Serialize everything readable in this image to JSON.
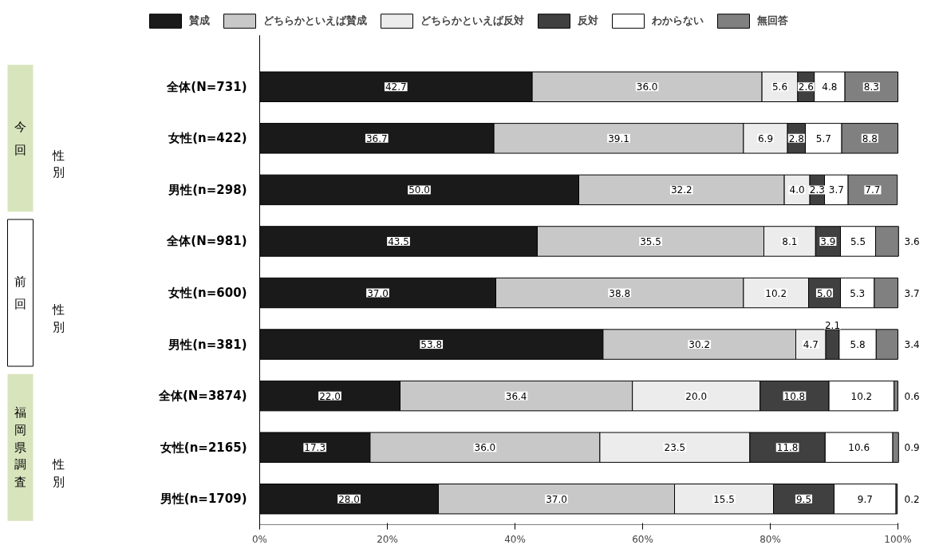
{
  "chart_data": {
    "type": "bar",
    "orientation": "horizontal",
    "stacked": true,
    "categories": [
      "全体(N=731)",
      "女性(n=422)",
      "男性(n=298)",
      "全体(N=981)",
      "女性(n=600)",
      "男性(n=381)",
      "全体(N=3874)",
      "女性(n=2165)",
      "男性(n=1709)"
    ],
    "series": [
      {
        "name": "賛成",
        "color": "#1a1a1a",
        "values": [
          42.7,
          36.7,
          50.0,
          43.5,
          37.0,
          53.8,
          22.0,
          17.3,
          28.0
        ],
        "value_labels": [
          "42.7",
          "36.7",
          "50.0",
          "43.5",
          "37.0",
          "53.8",
          "22.0",
          "17.3",
          "28.0"
        ]
      },
      {
        "name": "どちらかといえば賛成",
        "color": "#c8c8c8",
        "values": [
          36.0,
          39.1,
          32.2,
          35.5,
          38.8,
          30.2,
          36.4,
          36.0,
          37.0
        ],
        "value_labels": [
          "36.0",
          "39.1",
          "32.2",
          "35.5",
          "38.8",
          "30.2",
          "36.4",
          "36.0",
          "37.0"
        ]
      },
      {
        "name": "どちらかといえば反対",
        "color": "#ececec",
        "values": [
          5.6,
          6.9,
          4.0,
          8.1,
          10.2,
          4.7,
          20.0,
          23.5,
          15.5
        ],
        "value_labels": [
          "5.6",
          "6.9",
          "4.0",
          "8.1",
          "10.2",
          "4.7",
          "20.0",
          "23.5",
          "15.5"
        ]
      },
      {
        "name": "反対",
        "color": "#404040",
        "values": [
          2.6,
          2.8,
          2.3,
          3.9,
          5.0,
          2.1,
          10.8,
          11.8,
          9.5
        ],
        "value_labels": [
          "2.6",
          "2.8",
          "2.3",
          "3.9",
          "5.0",
          "2.1",
          "10.8",
          "11.8",
          "9.5"
        ]
      },
      {
        "name": "わからない",
        "color": "#ffffff",
        "values": [
          4.8,
          5.7,
          3.7,
          5.5,
          5.3,
          5.8,
          10.2,
          10.6,
          9.7
        ],
        "value_labels": [
          "4.8",
          "5.7",
          "3.7",
          "5.5",
          "5.3",
          "5.8",
          "10.2",
          "10.6",
          "9.7"
        ]
      },
      {
        "name": "無回答",
        "color": "#808080",
        "values": [
          8.3,
          8.8,
          7.7,
          3.6,
          3.7,
          3.4,
          0.6,
          0.9,
          0.2
        ],
        "value_labels": [
          "8.3",
          "8.8",
          "7.7",
          "3.6",
          "3.7",
          "3.4",
          "0.6",
          "0.9",
          "0.2"
        ]
      }
    ],
    "xlim": [
      0,
      100
    ],
    "xticks": [
      {
        "value": 0,
        "label": "0%"
      },
      {
        "value": 20,
        "label": "20%"
      },
      {
        "value": 40,
        "label": "40%"
      },
      {
        "value": 60,
        "label": "60%"
      },
      {
        "value": 80,
        "label": "80%"
      },
      {
        "value": 100,
        "label": "100%"
      }
    ],
    "grid": false,
    "legend": "top",
    "annotations": [
      "今回",
      "性別",
      "前回",
      "性別",
      "福岡県調査",
      "性別"
    ]
  }
}
